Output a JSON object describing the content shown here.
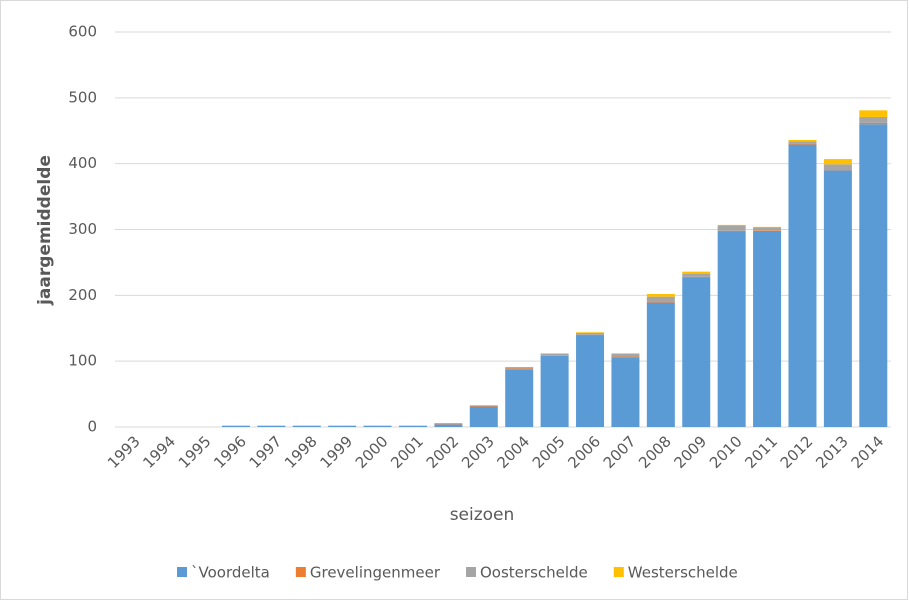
{
  "chart_data": {
    "type": "stacked_bar",
    "ylabel": "jaargemiddelde",
    "xlabel": "seizoen",
    "categories": [
      "1993",
      "1994",
      "1995",
      "1996",
      "1997",
      "1998",
      "1999",
      "2000",
      "2001",
      "2002",
      "2003",
      "2004",
      "2005",
      "2006",
      "2007",
      "2008",
      "2009",
      "2010",
      "2011",
      "2012",
      "2013",
      "2014"
    ],
    "series": [
      {
        "name": "`Voordelta",
        "color": "#5b9bd5",
        "values": [
          0,
          0,
          0,
          2,
          2,
          2,
          2,
          2,
          2,
          4,
          31,
          87,
          108,
          139,
          106,
          189,
          227,
          297,
          298,
          429,
          390,
          460
        ]
      },
      {
        "name": "Grevelingenmeer",
        "color": "#ed7d31",
        "values": [
          0,
          0,
          0,
          0,
          0,
          0,
          0,
          0,
          0,
          1,
          1,
          2,
          1,
          1,
          1,
          1,
          1,
          1,
          1,
          1,
          1,
          2
        ]
      },
      {
        "name": "Oosterschelde",
        "color": "#a5a5a5",
        "values": [
          0,
          0,
          0,
          0,
          0,
          0,
          0,
          0,
          0,
          1,
          1,
          2,
          2,
          3,
          4,
          8,
          5,
          8,
          4,
          4,
          8,
          9
        ]
      },
      {
        "name": "Westerschelde",
        "color": "#ffc000",
        "values": [
          0,
          0,
          0,
          0,
          0,
          0,
          0,
          0,
          0,
          0,
          0,
          0,
          1,
          1,
          1,
          4,
          3,
          1,
          1,
          2,
          8,
          10
        ]
      }
    ],
    "ylim": [
      0,
      600
    ],
    "yticks": [
      0,
      100,
      200,
      300,
      400,
      500,
      600
    ],
    "grid": true,
    "legend": "bottom"
  }
}
